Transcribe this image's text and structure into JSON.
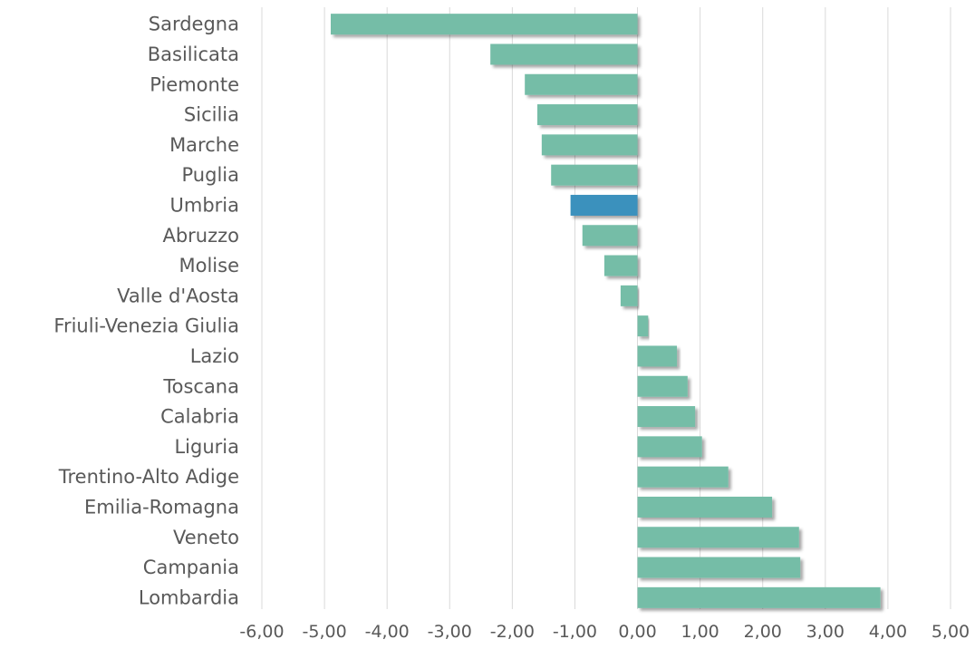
{
  "chart_data": {
    "type": "bar",
    "orientation": "horizontal",
    "categories": [
      "Sardegna",
      "Basilicata",
      "Piemonte",
      "Sicilia",
      "Marche",
      "Puglia",
      "Umbria",
      "Abruzzo",
      "Molise",
      "Valle d'Aosta",
      "Friuli-Venezia Giulia",
      "Lazio",
      "Toscana",
      "Calabria",
      "Liguria",
      "Trentino-Alto Adige",
      "Emilia-Romagna",
      "Veneto",
      "Campania",
      "Lombardia"
    ],
    "values": [
      -4.9,
      -2.35,
      -1.8,
      -1.6,
      -1.53,
      -1.38,
      -1.07,
      -0.88,
      -0.53,
      -0.27,
      0.17,
      0.63,
      0.8,
      0.92,
      1.03,
      1.45,
      2.15,
      2.58,
      2.6,
      3.88
    ],
    "title": "",
    "xlabel": "",
    "ylabel": "",
    "xlim": [
      -6,
      5
    ],
    "xticks": [
      -6,
      -5,
      -4,
      -3,
      -2,
      -1,
      0,
      1,
      2,
      3,
      4,
      5
    ],
    "tick_labels": [
      "-6,00",
      "-5,00",
      "-4,00",
      "-3,00",
      "-2,00",
      "-1,00",
      "0,00",
      "1,00",
      "2,00",
      "3,00",
      "4,00",
      "5,00"
    ],
    "grid": "vertical",
    "legend": "none",
    "highlight_category": "Umbria",
    "colors": {
      "bar": "#74bda7",
      "highlight": "#3a91bd",
      "grid": "#d9d9d9",
      "text": "#595959"
    }
  }
}
